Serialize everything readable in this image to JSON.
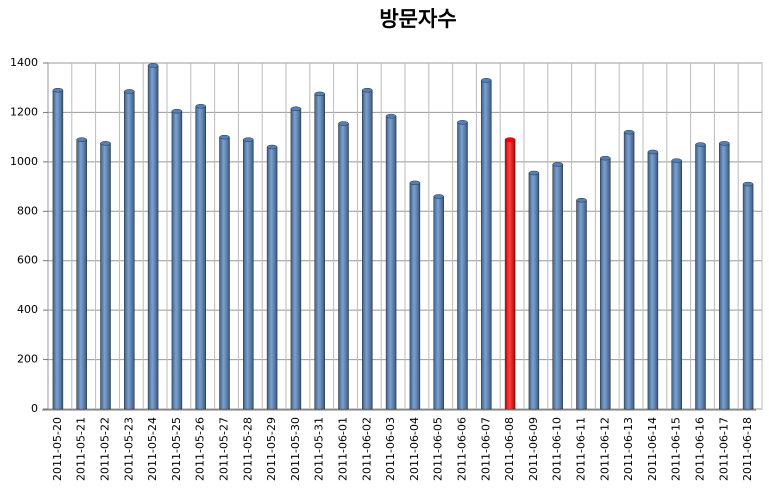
{
  "chart_data": {
    "type": "bar",
    "title": "방문자수",
    "categories": [
      "2011-05-20",
      "2011-05-21",
      "2011-05-22",
      "2011-05-23",
      "2011-05-24",
      "2011-05-25",
      "2011-05-26",
      "2011-05-27",
      "2011-05-28",
      "2011-05-29",
      "2011-05-30",
      "2011-05-31",
      "2011-06-01",
      "2011-06-02",
      "2011-06-03",
      "2011-06-04",
      "2011-06-05",
      "2011-06-06",
      "2011-06-07",
      "2011-06-08",
      "2011-06-09",
      "2011-06-10",
      "2011-06-11",
      "2011-06-12",
      "2011-06-13",
      "2011-06-14",
      "2011-06-15",
      "2011-06-16",
      "2011-06-17",
      "2011-06-18"
    ],
    "values": [
      1290,
      1090,
      1075,
      1285,
      1390,
      1205,
      1225,
      1100,
      1090,
      1060,
      1215,
      1275,
      1155,
      1290,
      1185,
      915,
      860,
      1160,
      1330,
      1090,
      955,
      990,
      845,
      1015,
      1120,
      1040,
      1005,
      1070,
      1075,
      910
    ],
    "colors": [
      "#4f81bd",
      "#4f81bd",
      "#4f81bd",
      "#4f81bd",
      "#4f81bd",
      "#4f81bd",
      "#4f81bd",
      "#4f81bd",
      "#4f81bd",
      "#4f81bd",
      "#4f81bd",
      "#4f81bd",
      "#4f81bd",
      "#4f81bd",
      "#4f81bd",
      "#4f81bd",
      "#4f81bd",
      "#4f81bd",
      "#4f81bd",
      "#ff0000",
      "#4f81bd",
      "#4f81bd",
      "#4f81bd",
      "#4f81bd",
      "#4f81bd",
      "#4f81bd",
      "#4f81bd",
      "#4f81bd",
      "#4f81bd",
      "#4f81bd"
    ],
    "ylim": [
      0,
      1400
    ],
    "yticks": [
      0,
      200,
      400,
      600,
      800,
      1000,
      1200,
      1400
    ],
    "grid": true
  }
}
